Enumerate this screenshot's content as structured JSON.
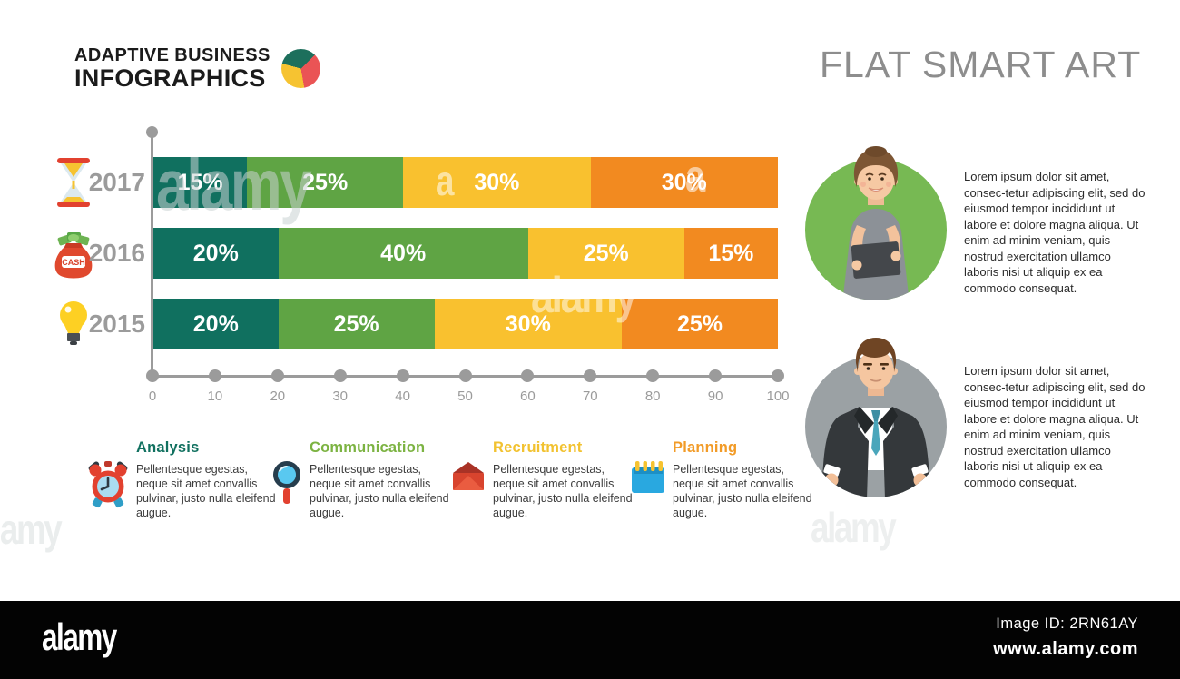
{
  "header": {
    "logo_line1": "ADAPTIVE BUSINESS",
    "logo_line2": "INFOGRAPHICS",
    "logo_icon": "pie-chart-icon",
    "title": "FLAT SMART ART"
  },
  "chart_data": {
    "type": "bar",
    "orientation": "horizontal",
    "stacked": true,
    "categories": [
      "2017",
      "2016",
      "2015"
    ],
    "category_icons": [
      "hourglass-icon",
      "money-bag-icon",
      "light-bulb-icon"
    ],
    "cash_label": "CASH",
    "series": [
      {
        "name": "Analysis",
        "color": "#10705f",
        "values": [
          15,
          20,
          20
        ]
      },
      {
        "name": "Communication",
        "color": "#5fa444",
        "values": [
          25,
          40,
          25
        ]
      },
      {
        "name": "Recruitment",
        "color": "#f9c12f",
        "values": [
          30,
          25,
          30
        ]
      },
      {
        "name": "Planning",
        "color": "#f28a20",
        "values": [
          30,
          15,
          25
        ]
      }
    ],
    "data_labels": [
      [
        "15%",
        "25%",
        "30%",
        "30%"
      ],
      [
        "20%",
        "40%",
        "25%",
        "15%"
      ],
      [
        "20%",
        "25%",
        "30%",
        "25%"
      ]
    ],
    "x_ticks": [
      "0",
      "10",
      "20",
      "30",
      "40",
      "50",
      "60",
      "70",
      "80",
      "90",
      "100"
    ],
    "xlim": [
      0,
      100
    ],
    "grid": false,
    "axis_color": "#9b9b9b",
    "legend_position": "bottom"
  },
  "legend": {
    "items": [
      {
        "title": "Analysis",
        "color": "#10705f",
        "icon": "alarm-clock-icon",
        "description": "Pellentesque egestas, neque sit amet convallis pulvinar, justo nulla eleifend augue."
      },
      {
        "title": "Communication",
        "color": "#7cb342",
        "icon": "magnifier-icon",
        "description": "Pellentesque egestas, neque sit amet convallis pulvinar, justo nulla eleifend augue."
      },
      {
        "title": "Recruitment",
        "color": "#f2c230",
        "icon": "envelope-icon",
        "description": "Pellentesque egestas, neque sit amet convallis pulvinar, justo nulla eleifend augue."
      },
      {
        "title": "Planning",
        "color": "#f29b27",
        "icon": "calendar-icon",
        "description": "Pellentesque egestas, neque sit amet convallis pulvinar, justo nulla eleifend augue."
      }
    ]
  },
  "profiles": [
    {
      "avatar": "businesswoman-avatar",
      "circle_color": "#77b953",
      "text": "Lorem ipsum dolor sit amet, consec-tetur adipiscing elit, sed do eiusmod tempor incididunt ut labore et dolore magna aliqua. Ut enim ad minim veniam, quis nostrud exercitation ullamco laboris nisi ut aliquip ex ea commodo consequat."
    },
    {
      "avatar": "businessman-avatar",
      "circle_color": "#9ba1a4",
      "text": "Lorem ipsum dolor sit amet, consec-tetur adipiscing elit, sed do eiusmod tempor incididunt ut labore et dolore magna aliqua. Ut enim ad minim veniam, quis nostrud exercitation ullamco laboris nisi ut aliquip ex ea commodo consequat."
    }
  ],
  "watermark": {
    "logo": "alamy",
    "image_id": "Image ID: 2RN61AY",
    "url": "www.alamy.com"
  }
}
